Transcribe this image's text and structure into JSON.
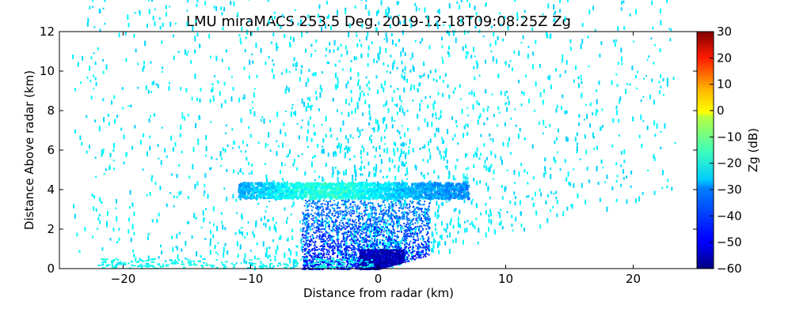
{
  "chart_data": {
    "type": "heatmap",
    "subtype": "radar-rhi-scan",
    "title": "LMU miraMACS 253.5 Deg. 2019-12-18T09:08:25Z  Zg",
    "xlabel": "Distance from radar (km)",
    "ylabel": "Distance Above radar  (km)",
    "xlim": [
      -25,
      25
    ],
    "ylim": [
      0,
      12
    ],
    "xticks": [
      "−20",
      "−10",
      "0",
      "10",
      "20"
    ],
    "xtick_values": [
      -20,
      -10,
      0,
      10,
      20
    ],
    "yticks": [
      "0",
      "2",
      "4",
      "6",
      "8",
      "10",
      "12"
    ],
    "ytick_values": [
      0,
      2,
      4,
      6,
      8,
      10,
      12
    ],
    "colorbar": {
      "label": "Zg (dB)",
      "range": [
        -60,
        30
      ],
      "ticks": [
        "−60",
        "−50",
        "−40",
        "−30",
        "−20",
        "−10",
        "0",
        "10",
        "20",
        "30"
      ],
      "tick_values": [
        -60,
        -50,
        -40,
        -30,
        -20,
        -10,
        0,
        10,
        20,
        30
      ],
      "colormap": "jet"
    },
    "regions": [
      {
        "name": "background noise",
        "x_range_km": [
          -24,
          23.5
        ],
        "y_range_km": [
          0,
          12
        ],
        "zg_dB": -28
      },
      {
        "name": "cloud layer",
        "x_range_km": [
          -11,
          7
        ],
        "y_range_km": [
          3.6,
          4.4
        ],
        "zg_dB": -25
      },
      {
        "name": "near-radar echo",
        "x_range_km": [
          -6,
          4
        ],
        "y_range_km": [
          0,
          3.5
        ],
        "zg_dB": -45
      },
      {
        "name": "radar core",
        "x_range_km": [
          -1.5,
          2
        ],
        "y_range_km": [
          0,
          1
        ],
        "zg_dB": -55
      }
    ],
    "scan_lower_edge": {
      "x_km": [
        0,
        23.5
      ],
      "y_km": [
        0,
        4.1
      ]
    }
  }
}
